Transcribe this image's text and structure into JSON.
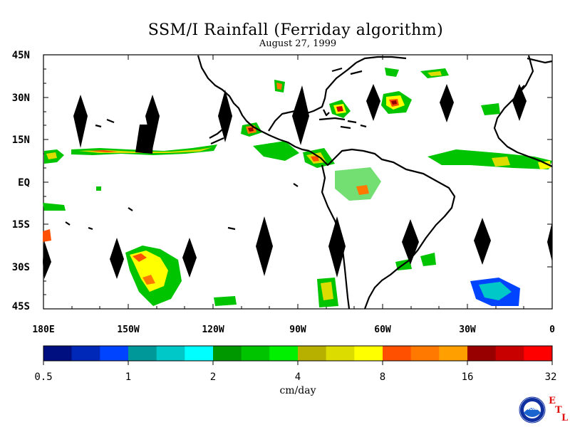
{
  "title": "SSM/I Rainfall (Ferriday algorithm)",
  "date": "August 27, 1999",
  "lat_labels": [
    "45N",
    "30N",
    "15N",
    "EQ",
    "15S",
    "30S",
    "45S"
  ],
  "lon_labels": [
    "180E",
    "150W",
    "120W",
    "90W",
    "60W",
    "30W",
    "0"
  ],
  "colorbar": {
    "units": "cm/day",
    "tick_labels": [
      "0.5",
      "1",
      "2",
      "4",
      "8",
      "16",
      "32"
    ],
    "colors": [
      "#000f80",
      "#0028b8",
      "#0044ff",
      "#009898",
      "#00c8c8",
      "#00ffff",
      "#009800",
      "#00c400",
      "#00f000",
      "#b8b000",
      "#dcdc00",
      "#ffff00",
      "#ff5000",
      "#ff7800",
      "#ffa000",
      "#980000",
      "#c80000",
      "#ff0000"
    ]
  },
  "logo": {
    "noaa_text": "NOAA",
    "etl_letters": [
      "E",
      "T",
      "L"
    ]
  }
}
